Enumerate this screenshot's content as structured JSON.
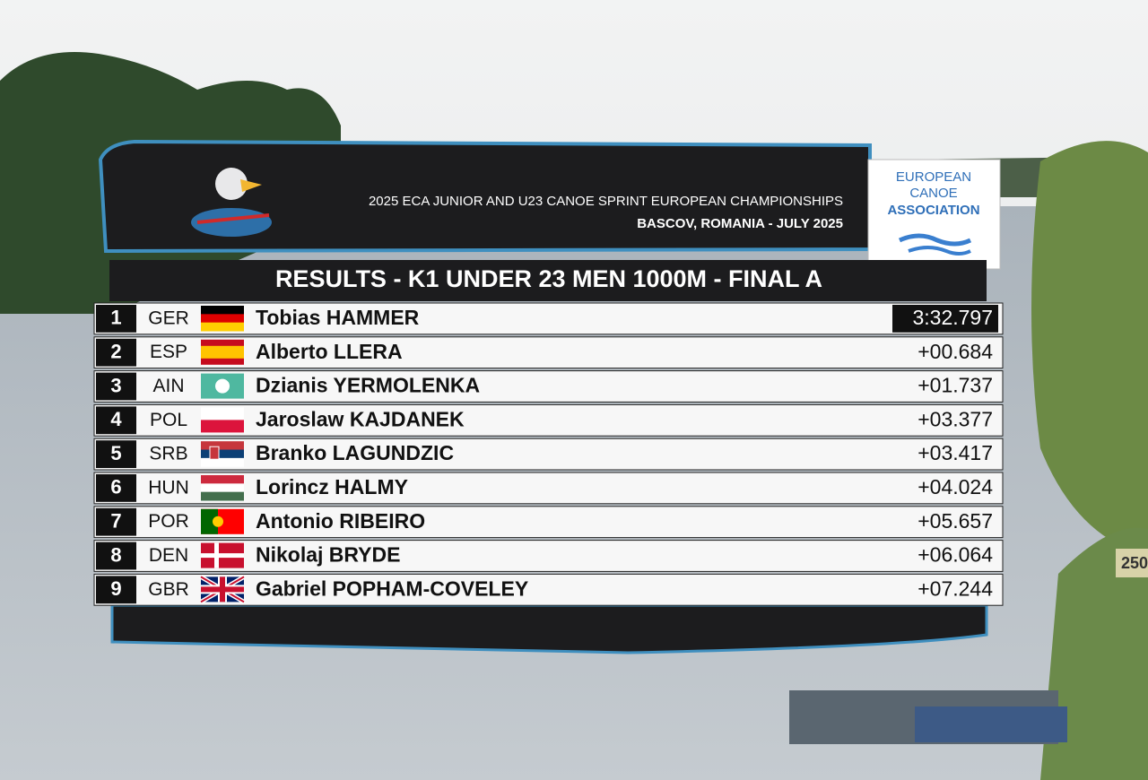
{
  "header": {
    "line1": "2025 ECA JUNIOR AND U23 CANOE SPRINT EUROPEAN CHAMPIONSHIPS",
    "line2": "BASCOV, ROMANIA - JULY 2025"
  },
  "logo": {
    "lines": [
      "EUROPEAN",
      "CANOE",
      "ASSOCIATION"
    ]
  },
  "results": {
    "title": "RESULTS - K1 UNDER 23 MEN 1000M - FINAL A",
    "rows": [
      {
        "rank": "1",
        "country": "GER",
        "name": "Tobias HAMMER",
        "time": "3:32.797"
      },
      {
        "rank": "2",
        "country": "ESP",
        "name": "Alberto LLERA",
        "time": "+00.684"
      },
      {
        "rank": "3",
        "country": "AIN",
        "name": "Dzianis YERMOLENKA",
        "time": "+01.737"
      },
      {
        "rank": "4",
        "country": "POL",
        "name": "Jaroslaw KAJDANEK",
        "time": "+03.377"
      },
      {
        "rank": "5",
        "country": "SRB",
        "name": "Branko LAGUNDZIC",
        "time": "+03.417"
      },
      {
        "rank": "6",
        "country": "HUN",
        "name": "Lorincz HALMY",
        "time": "+04.024"
      },
      {
        "rank": "7",
        "country": "POR",
        "name": "Antonio RIBEIRO",
        "time": "+05.657"
      },
      {
        "rank": "8",
        "country": "DEN",
        "name": "Nikolaj BRYDE",
        "time": "+06.064"
      },
      {
        "rank": "9",
        "country": "GBR",
        "name": "Gabriel POPHAM-COVELEY",
        "time": "+07.244"
      }
    ]
  },
  "scene": {
    "sign": "250"
  }
}
